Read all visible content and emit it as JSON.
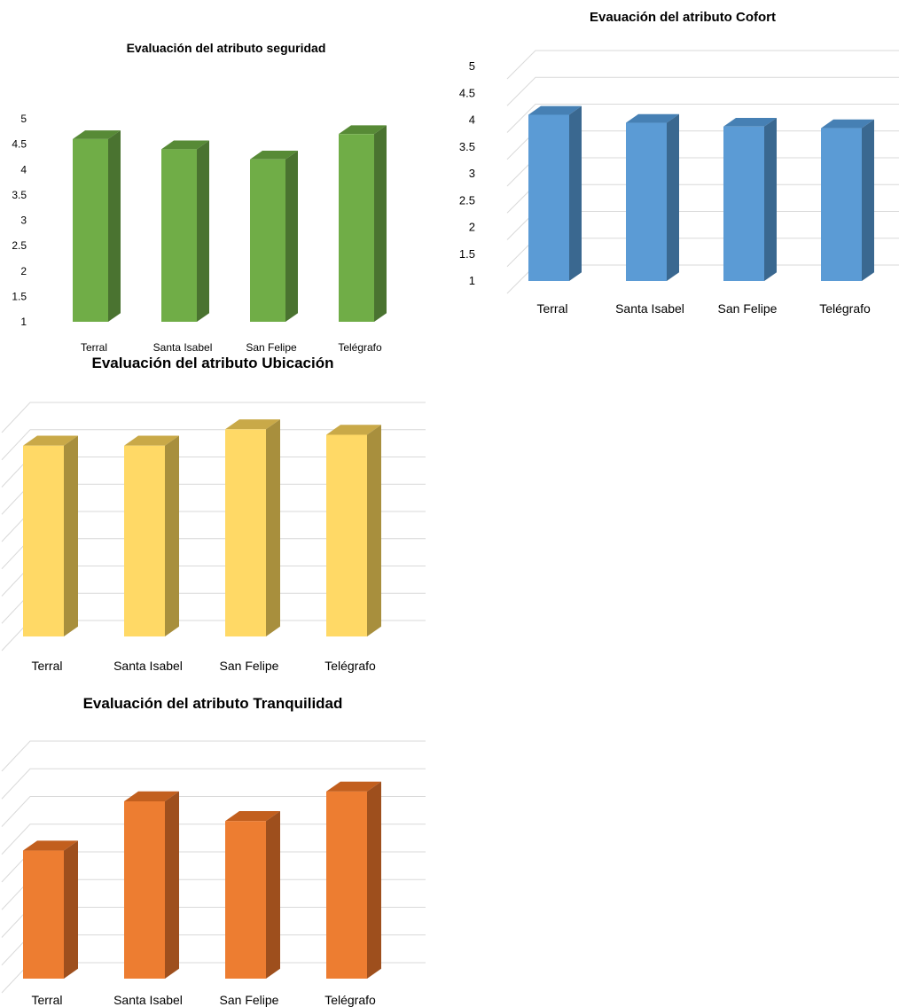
{
  "chart_data": [
    {
      "type": "bar",
      "title": "Evaluación del atributo seguridad",
      "categories": [
        "Terral",
        "Santa Isabel",
        "San Felipe",
        "Telégrafo"
      ],
      "values": [
        4.6,
        4.4,
        4.2,
        4.7
      ],
      "ylim": [
        1,
        5
      ],
      "ytick_labels": [
        "1",
        "1.5",
        "2",
        "2.5",
        "3",
        "3.5",
        "4",
        "4.5",
        "5"
      ],
      "show_yaxis": true,
      "grid": false,
      "colors": {
        "front": "#70ad47",
        "side": "#4a7330",
        "top": "#578a36"
      }
    },
    {
      "type": "bar",
      "title": "Evauación del atributo Cofort",
      "categories": [
        "Terral",
        "Santa Isabel",
        "San Felipe",
        "Telégrafo"
      ],
      "values": [
        4.1,
        3.95,
        3.88,
        3.85
      ],
      "ylim": [
        1,
        5
      ],
      "ytick_labels": [
        "1",
        "1.5",
        "2",
        "2.5",
        "3",
        "3.5",
        "4",
        "4.5",
        "5"
      ],
      "show_yaxis": true,
      "grid": true,
      "colors": {
        "front": "#5b9bd5",
        "side": "#3a6890",
        "top": "#4680b4"
      }
    },
    {
      "type": "bar",
      "title": "Evaluación del atributo Ubicación",
      "categories": [
        "Terral",
        "Santa Isabel",
        "San Felipe",
        "Telégrafo"
      ],
      "values": [
        4.5,
        4.5,
        4.8,
        4.7
      ],
      "ylim": [
        1,
        5
      ],
      "show_yaxis": false,
      "grid": true,
      "colors": {
        "front": "#ffd966",
        "side": "#a88f3d",
        "top": "#c9a948"
      }
    },
    {
      "type": "bar",
      "title": "Evaluación del atributo Tranquilidad",
      "categories": [
        "Terral",
        "Santa Isabel",
        "San Felipe",
        "Telégrafo"
      ],
      "values": [
        3.6,
        4.6,
        4.2,
        4.8
      ],
      "ylim": [
        1,
        5.5
      ],
      "show_yaxis": false,
      "grid": true,
      "colors": {
        "front": "#ed7d31",
        "side": "#9e4f1d",
        "top": "#c25f1e"
      }
    }
  ]
}
